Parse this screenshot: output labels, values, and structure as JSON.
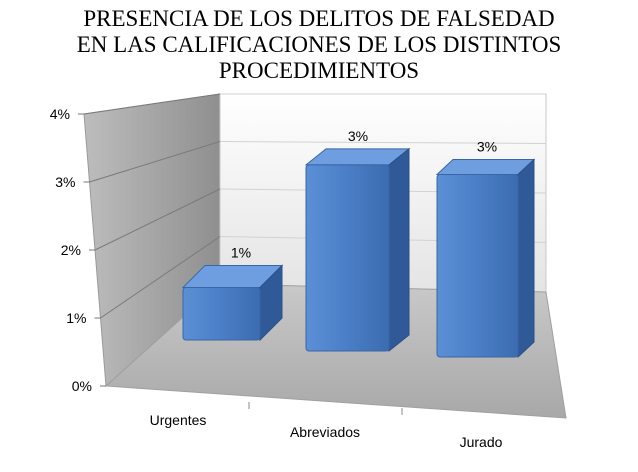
{
  "chart_data": {
    "type": "bar",
    "title": "PRESENCIA DE LOS DELITOS DE FALSEDAD\nEN LAS CALIFICACIONES DE LOS DISTINTOS\nPROCEDIMIENTOS",
    "categories": [
      "Urgentes",
      "Abreviados",
      "Jurado"
    ],
    "values": [
      0.72,
      2.55,
      2.5
    ],
    "data_labels": [
      "1%",
      "3%",
      "3%"
    ],
    "ylim": [
      0,
      4
    ],
    "yticks": [
      "0%",
      "1%",
      "2%",
      "3%",
      "4%"
    ],
    "grid": true,
    "legend": "none",
    "bar_color": "#4a7ec6",
    "style": "3d"
  }
}
